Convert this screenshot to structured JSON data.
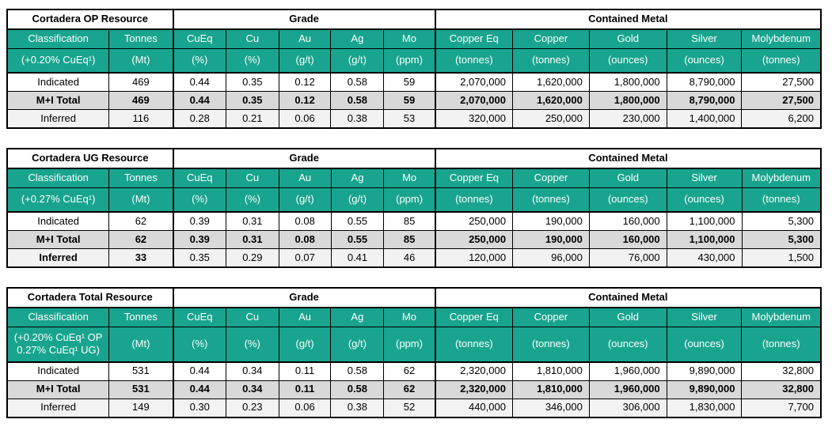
{
  "colors": {
    "header_teal": "#18a48e",
    "header_text": "#ffffff",
    "row_mi_total": "#d9d9d9",
    "row_inferred": "#f2f2f2",
    "border": "#000000"
  },
  "tables": [
    {
      "id": "cortadera-op",
      "title": "Cortadera OP Resource",
      "grade_label": "Grade",
      "contained_label": "Contained Metal",
      "columns": [
        "Classification",
        "Tonnes",
        "CuEq",
        "Cu",
        "Au",
        "Ag",
        "Mo",
        "Copper Eq",
        "Copper",
        "Gold",
        "Silver",
        "Molybdenum"
      ],
      "units": [
        "(+0.20% CuEq¹)",
        "(Mt)",
        "(%)",
        "(%)",
        "(g/t)",
        "(g/t)",
        "(ppm)",
        "(tonnes)",
        "(tonnes)",
        "(ounces)",
        "(ounces)",
        "(tonnes)"
      ],
      "rows": [
        {
          "style": "white",
          "cells": [
            "Indicated",
            "469",
            "0.44",
            "0.35",
            "0.12",
            "0.58",
            "59",
            "2,070,000",
            "1,620,000",
            "1,800,000",
            "8,790,000",
            "27,500"
          ]
        },
        {
          "style": "gray",
          "bold": "all",
          "cells": [
            "M+I Total",
            "469",
            "0.44",
            "0.35",
            "0.12",
            "0.58",
            "59",
            "2,070,000",
            "1,620,000",
            "1,800,000",
            "8,790,000",
            "27,500"
          ]
        },
        {
          "style": "lightgray",
          "cells": [
            "Inferred",
            "116",
            "0.28",
            "0.21",
            "0.06",
            "0.38",
            "53",
            "320,000",
            "250,000",
            "230,000",
            "1,400,000",
            "6,200"
          ]
        }
      ]
    },
    {
      "id": "cortadera-ug",
      "title": "Cortadera UG Resource",
      "grade_label": "Grade",
      "contained_label": "Contained Metal",
      "columns": [
        "Classification",
        "Tonnes",
        "CuEq",
        "Cu",
        "Au",
        "Ag",
        "Mo",
        "Copper Eq",
        "Copper",
        "Gold",
        "Silver",
        "Molybdenum"
      ],
      "units": [
        "(+0.27% CuEq¹)",
        "(Mt)",
        "(%)",
        "(%)",
        "(g/t)",
        "(g/t)",
        "(ppm)",
        "(tonnes)",
        "(tonnes)",
        "(ounces)",
        "(ounces)",
        "(tonnes)"
      ],
      "rows": [
        {
          "style": "white",
          "cells": [
            "Indicated",
            "62",
            "0.39",
            "0.31",
            "0.08",
            "0.55",
            "85",
            "250,000",
            "190,000",
            "160,000",
            "1,100,000",
            "5,300"
          ]
        },
        {
          "style": "gray",
          "bold": "all",
          "cells": [
            "M+I Total",
            "62",
            "0.39",
            "0.31",
            "0.08",
            "0.55",
            "85",
            "250,000",
            "190,000",
            "160,000",
            "1,100,000",
            "5,300"
          ]
        },
        {
          "style": "lightgray",
          "bold": [
            0,
            1
          ],
          "cells": [
            "Inferred",
            "33",
            "0.35",
            "0.29",
            "0.07",
            "0.41",
            "46",
            "120,000",
            "96,000",
            "76,000",
            "430,000",
            "1,500"
          ]
        }
      ]
    },
    {
      "id": "cortadera-total",
      "title": "Cortadera Total Resource",
      "grade_label": "Grade",
      "contained_label": "Contained Metal",
      "columns": [
        "Classification",
        "Tonnes",
        "CuEq",
        "Cu",
        "Au",
        "Ag",
        "Mo",
        "Copper Eq",
        "Copper",
        "Gold",
        "Silver",
        "Molybdenum"
      ],
      "units": [
        "(+0.20% CuEq¹ OP\n0.27% CuEq¹ UG)",
        "(Mt)",
        "(%)",
        "(%)",
        "(g/t)",
        "(g/t)",
        "(ppm)",
        "(tonnes)",
        "(tonnes)",
        "(ounces)",
        "(ounces)",
        "(tonnes)"
      ],
      "rows": [
        {
          "style": "white",
          "cells": [
            "Indicated",
            "531",
            "0.44",
            "0.34",
            "0.11",
            "0.58",
            "62",
            "2,320,000",
            "1,810,000",
            "1,960,000",
            "9,890,000",
            "32,800"
          ]
        },
        {
          "style": "gray",
          "bold": "all",
          "cells": [
            "M+I Total",
            "531",
            "0.44",
            "0.34",
            "0.11",
            "0.58",
            "62",
            "2,320,000",
            "1,810,000",
            "1,960,000",
            "9,890,000",
            "32,800"
          ]
        },
        {
          "style": "lightgray",
          "cells": [
            "Inferred",
            "149",
            "0.30",
            "0.23",
            "0.06",
            "0.38",
            "52",
            "440,000",
            "346,000",
            "306,000",
            "1,830,000",
            "7,700"
          ]
        }
      ]
    }
  ]
}
